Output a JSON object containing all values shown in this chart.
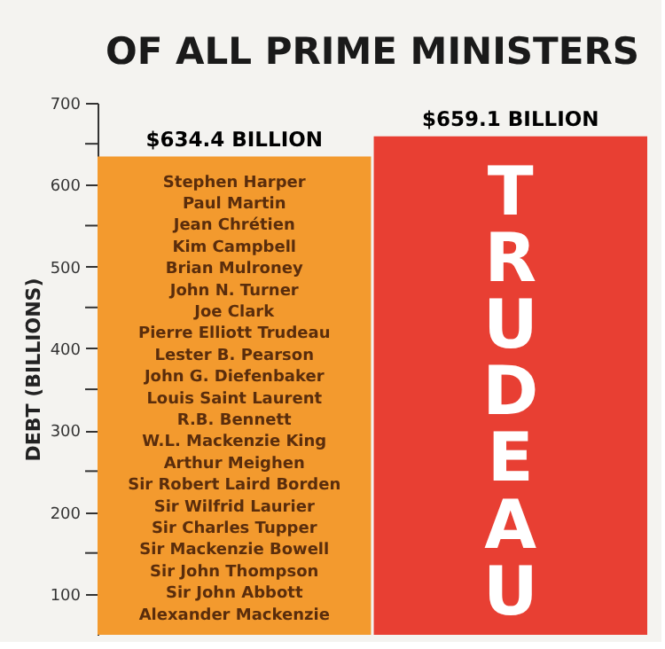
{
  "chart_data": {
    "type": "bar",
    "title": "OF ALL PRIME MINISTERS",
    "ylabel": "DEBT (BILLIONS)",
    "categories": [
      null,
      null
    ],
    "values": [
      634.4,
      659.1
    ],
    "colors": [
      "#f39a2e",
      "#e83f33"
    ],
    "value_labels": [
      "$634.4 BILLION",
      "$659.1 BILLION"
    ],
    "ylim": [
      50,
      700
    ],
    "yticks": [
      {
        "value": 150,
        "label": null
      },
      {
        "value": 250,
        "label": null
      },
      {
        "value": 350,
        "label": null
      },
      {
        "value": 450,
        "label": null
      },
      {
        "value": 550,
        "label": null
      },
      {
        "value": 650,
        "label": null
      },
      100,
      200,
      300,
      400,
      500,
      600,
      700
    ],
    "tick_labels": "y",
    "grid": false,
    "annotations": [
      "Stephen Harper",
      "Paul Martin",
      "Jean Chrétien",
      "Kim Campbell",
      "Brian Mulroney",
      "John N. Turner",
      "Joe Clark",
      "Pierre Elliott Trudeau",
      "Lester B. Pearson",
      "John G. Diefenbaker",
      "Louis Saint Laurent",
      "R.B. Bennett",
      "W.L. Mackenzie King",
      "Arthur Meighen",
      "Sir Robert Laird Borden",
      "Sir Wilfrid Laurier",
      "Sir Charles Tupper",
      "Sir Mackenzie Bowell",
      "Sir John Thompson",
      "Sir John Abbott",
      "Alexander Mackenzie",
      "TRUDEAU"
    ]
  }
}
